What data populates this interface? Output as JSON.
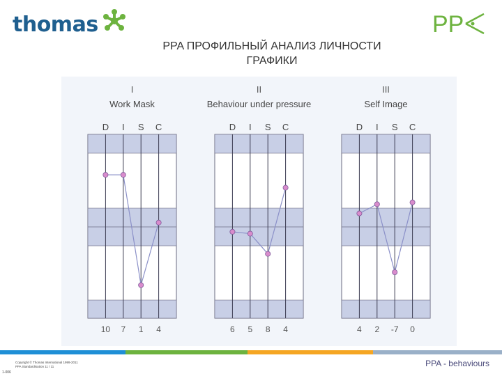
{
  "brand": {
    "logo_text": "thomas"
  },
  "page_title": {
    "line1": "PPA ПРОФИЛЬНЫЙ АНАЛИЗ ЛИЧНОСТИ",
    "line2": "ГРАФИКИ"
  },
  "ppa_logo": "PP",
  "footer": {
    "copyright_line1": "Copyright © Thomas International 1999-2011",
    "copyright_line2": "PPA Standardisation 11 / 11",
    "code": "1-006",
    "right_label": "PPA - behaviours"
  },
  "colors": {
    "brand_blue": "#1f5f8f",
    "brand_green": "#6db33f",
    "band": "#c8cfe6",
    "line": "#8b90c8",
    "point": "#d98ccc"
  },
  "chart_data": [
    {
      "type": "line",
      "numeral": "I",
      "title": "Work Mask",
      "categories": [
        "D",
        "I",
        "S",
        "C"
      ],
      "values": [
        10,
        7,
        1,
        4
      ],
      "value_labels": [
        "10",
        "7",
        "1",
        "4"
      ],
      "ylim": [
        0,
        1
      ],
      "positions": [
        0.78,
        0.78,
        0.18,
        0.52
      ]
    },
    {
      "type": "line",
      "numeral": "II",
      "title": "Behaviour under pressure",
      "categories": [
        "D",
        "I",
        "S",
        "C"
      ],
      "values": [
        6,
        5,
        8,
        4
      ],
      "value_labels": [
        "6",
        "5",
        "8",
        "4"
      ],
      "ylim": [
        0,
        1
      ],
      "positions": [
        0.47,
        0.46,
        0.35,
        0.71
      ]
    },
    {
      "type": "line",
      "numeral": "III",
      "title": "Self Image",
      "categories": [
        "D",
        "I",
        "S",
        "C"
      ],
      "values": [
        4,
        2,
        -7,
        0
      ],
      "value_labels": [
        "4",
        "2",
        "-7",
        "0"
      ],
      "ylim": [
        0,
        1
      ],
      "positions": [
        0.57,
        0.62,
        0.25,
        0.63
      ]
    }
  ]
}
